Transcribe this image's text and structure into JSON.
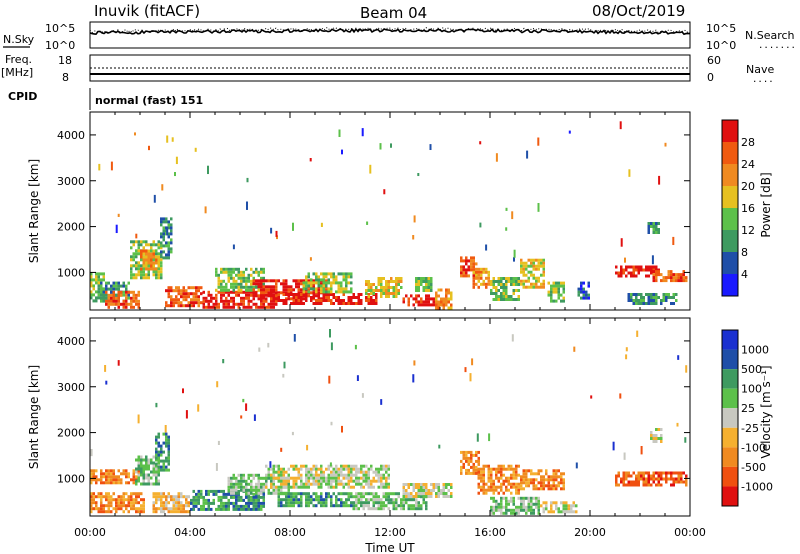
{
  "header": {
    "station": "Inuvik (fitACF)",
    "beam": "Beam 04",
    "date": "08/Oct/2019"
  },
  "noise_panel": {
    "left_label": "N.Sky",
    "left_top": "10^5",
    "left_bottom": "10^0",
    "right_top": "10^5",
    "right_bottom": "10^0",
    "right_label": "N.Search",
    "right_legend": "......."
  },
  "freq_panel": {
    "left_label_1": "Freq.",
    "left_label_2": "[MHz]",
    "left_top": "18",
    "left_bottom": "8",
    "right_top": "60",
    "right_bottom": "0",
    "right_label": "Nave",
    "right_legend": "...."
  },
  "cpid": {
    "label": "CPID",
    "mode": "normal (fast) 151"
  },
  "colors": {
    "power": [
      "#1a1aff",
      "#1f4fa8",
      "#3e9a60",
      "#5cc04a",
      "#e6c020",
      "#f08a20",
      "#f05a10",
      "#e01010"
    ],
    "velocity": [
      "#e01010",
      "#f05010",
      "#f08a20",
      "#f5b030",
      "#c8c8c0",
      "#5cc04a",
      "#3e9a60",
      "#1f4fa8",
      "#1a30d0"
    ]
  },
  "chart_data": [
    {
      "type": "heatmap",
      "name": "power",
      "ylabel": "Slant Range [km]",
      "ylim": [
        180,
        4500
      ],
      "yticks": [
        "1000",
        "2000",
        "3000",
        "4000"
      ],
      "xlim": [
        0,
        24
      ],
      "colorbar": {
        "label": "Power [dB]",
        "ticks": [
          "4",
          "8",
          "12",
          "16",
          "20",
          "24",
          "28"
        ]
      },
      "bands": [
        {
          "t": [
            0.0,
            0.6
          ],
          "r": [
            350,
            1000
          ],
          "c": 3
        },
        {
          "t": [
            0.4,
            1.6
          ],
          "r": [
            350,
            800
          ],
          "c": 2
        },
        {
          "t": [
            0.6,
            2.0
          ],
          "r": [
            250,
            600
          ],
          "c": 6
        },
        {
          "t": [
            1.6,
            2.9
          ],
          "r": [
            900,
            1700
          ],
          "c": 3
        },
        {
          "t": [
            2.0,
            2.8
          ],
          "r": [
            1100,
            1500
          ],
          "c": 5
        },
        {
          "t": [
            2.8,
            3.3
          ],
          "r": [
            1300,
            2200
          ],
          "c": 2
        },
        {
          "t": [
            3.0,
            4.5
          ],
          "r": [
            250,
            700
          ],
          "c": 6
        },
        {
          "t": [
            4.5,
            7.5
          ],
          "r": [
            250,
            600
          ],
          "c": 7
        },
        {
          "t": [
            5.0,
            7.0
          ],
          "r": [
            600,
            1100
          ],
          "c": 3
        },
        {
          "t": [
            6.5,
            9.5
          ],
          "r": [
            450,
            850
          ],
          "c": 7
        },
        {
          "t": [
            7.5,
            11.5
          ],
          "r": [
            300,
            550
          ],
          "c": 7
        },
        {
          "t": [
            8.5,
            10.5
          ],
          "r": [
            600,
            1000
          ],
          "c": 3
        },
        {
          "t": [
            11.0,
            12.5
          ],
          "r": [
            500,
            900
          ],
          "c": 4
        },
        {
          "t": [
            12.5,
            13.8
          ],
          "r": [
            280,
            520
          ],
          "c": 7
        },
        {
          "t": [
            13.0,
            13.7
          ],
          "r": [
            600,
            900
          ],
          "c": 3
        },
        {
          "t": [
            13.8,
            14.5
          ],
          "r": [
            250,
            650
          ],
          "c": 5
        },
        {
          "t": [
            14.8,
            15.4
          ],
          "r": [
            900,
            1350
          ],
          "c": 6
        },
        {
          "t": [
            15.3,
            16.0
          ],
          "r": [
            700,
            1100
          ],
          "c": 5
        },
        {
          "t": [
            16.0,
            17.2
          ],
          "r": [
            400,
            900
          ],
          "c": 3
        },
        {
          "t": [
            17.2,
            18.2
          ],
          "r": [
            700,
            1300
          ],
          "c": 4
        },
        {
          "t": [
            18.3,
            19.0
          ],
          "r": [
            400,
            800
          ],
          "c": 3
        },
        {
          "t": [
            19.5,
            20.0
          ],
          "r": [
            450,
            800
          ],
          "c": 1
        },
        {
          "t": [
            21.0,
            22.8
          ],
          "r": [
            900,
            1150
          ],
          "c": 7
        },
        {
          "t": [
            22.5,
            23.9
          ],
          "r": [
            850,
            1050
          ],
          "c": 6
        },
        {
          "t": [
            21.5,
            23.5
          ],
          "r": [
            350,
            550
          ],
          "c": 2
        },
        {
          "t": [
            22.3,
            22.8
          ],
          "r": [
            1850,
            2100
          ],
          "c": 2
        }
      ]
    },
    {
      "type": "heatmap",
      "name": "velocity",
      "ylabel": "Slant Range [km]",
      "ylim": [
        180,
        4500
      ],
      "yticks": [
        "1000",
        "2000",
        "3000",
        "4000"
      ],
      "xlim": [
        0,
        24
      ],
      "xlabel": "Time UT",
      "xticks": [
        "00:00",
        "04:00",
        "08:00",
        "12:00",
        "16:00",
        "20:00",
        "00:00"
      ],
      "colorbar": {
        "label": "Velocity [m s⁻¹]",
        "ticks": [
          "1000",
          "500",
          "100",
          "25",
          "-25",
          "-100",
          "-500",
          "-1000"
        ]
      },
      "bands": [
        {
          "t": [
            0.0,
            2.0
          ],
          "r": [
            900,
            1200
          ],
          "c": 2
        },
        {
          "t": [
            0.0,
            2.2
          ],
          "r": [
            300,
            700
          ],
          "c": 2
        },
        {
          "t": [
            1.8,
            2.8
          ],
          "r": [
            900,
            1500
          ],
          "c": 5
        },
        {
          "t": [
            2.6,
            3.2
          ],
          "r": [
            1200,
            2000
          ],
          "c": 6
        },
        {
          "t": [
            2.5,
            4.0
          ],
          "r": [
            300,
            700
          ],
          "c": 3
        },
        {
          "t": [
            4.0,
            7.0
          ],
          "r": [
            350,
            750
          ],
          "c": 6
        },
        {
          "t": [
            5.5,
            8.0
          ],
          "r": [
            700,
            1100
          ],
          "c": 5
        },
        {
          "t": [
            7.0,
            12.0
          ],
          "r": [
            800,
            1300
          ],
          "c": 4
        },
        {
          "t": [
            7.5,
            10.5
          ],
          "r": [
            400,
            700
          ],
          "c": 6
        },
        {
          "t": [
            10.5,
            13.5
          ],
          "r": [
            350,
            700
          ],
          "c": 5
        },
        {
          "t": [
            12.5,
            14.5
          ],
          "r": [
            600,
            900
          ],
          "c": 4
        },
        {
          "t": [
            14.8,
            15.6
          ],
          "r": [
            1100,
            1600
          ],
          "c": 2
        },
        {
          "t": [
            15.5,
            17.2
          ],
          "r": [
            700,
            1300
          ],
          "c": 2
        },
        {
          "t": [
            17.2,
            19.0
          ],
          "r": [
            800,
            1200
          ],
          "c": 2
        },
        {
          "t": [
            18.0,
            19.5
          ],
          "r": [
            250,
            500
          ],
          "c": 4
        },
        {
          "t": [
            21.0,
            23.9
          ],
          "r": [
            850,
            1150
          ],
          "c": 1
        },
        {
          "t": [
            22.4,
            22.8
          ],
          "r": [
            1800,
            2100
          ],
          "c": 4
        },
        {
          "t": [
            16.0,
            18.0
          ],
          "r": [
            250,
            600
          ],
          "c": 5
        }
      ]
    }
  ]
}
